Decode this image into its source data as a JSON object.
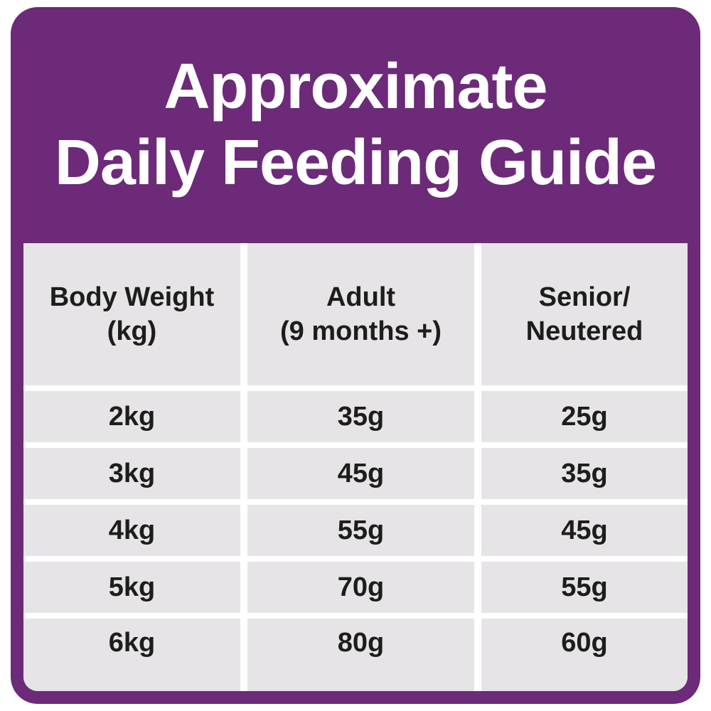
{
  "title": {
    "line1": "Approximate",
    "line2": "Daily Feeding Guide"
  },
  "table": {
    "headers": [
      {
        "line1": "Body Weight",
        "line2": "(kg)"
      },
      {
        "line1": "Adult",
        "line2": "(9 months +)"
      },
      {
        "line1": "Senior/",
        "line2": "Neutered"
      }
    ],
    "rows": [
      [
        "2kg",
        "35g",
        "25g"
      ],
      [
        "3kg",
        "45g",
        "35g"
      ],
      [
        "4kg",
        "55g",
        "45g"
      ],
      [
        "5kg",
        "70g",
        "55g"
      ],
      [
        "6kg",
        "80g",
        "60g"
      ]
    ]
  },
  "chart_data": {
    "type": "table",
    "title": "Approximate Daily Feeding Guide",
    "columns": [
      "Body Weight (kg)",
      "Adult (9 months +)",
      "Senior/Neutered"
    ],
    "rows": [
      [
        "2kg",
        "35g",
        "25g"
      ],
      [
        "3kg",
        "45g",
        "35g"
      ],
      [
        "4kg",
        "55g",
        "45g"
      ],
      [
        "5kg",
        "70g",
        "55g"
      ],
      [
        "6kg",
        "80g",
        "60g"
      ]
    ]
  },
  "colors": {
    "purple": "#6c2a79",
    "cell_gray": "#e6e4e6",
    "text_dark": "#1d1d1b",
    "title_text": "#ffffff",
    "page_background": "#ffffff"
  }
}
